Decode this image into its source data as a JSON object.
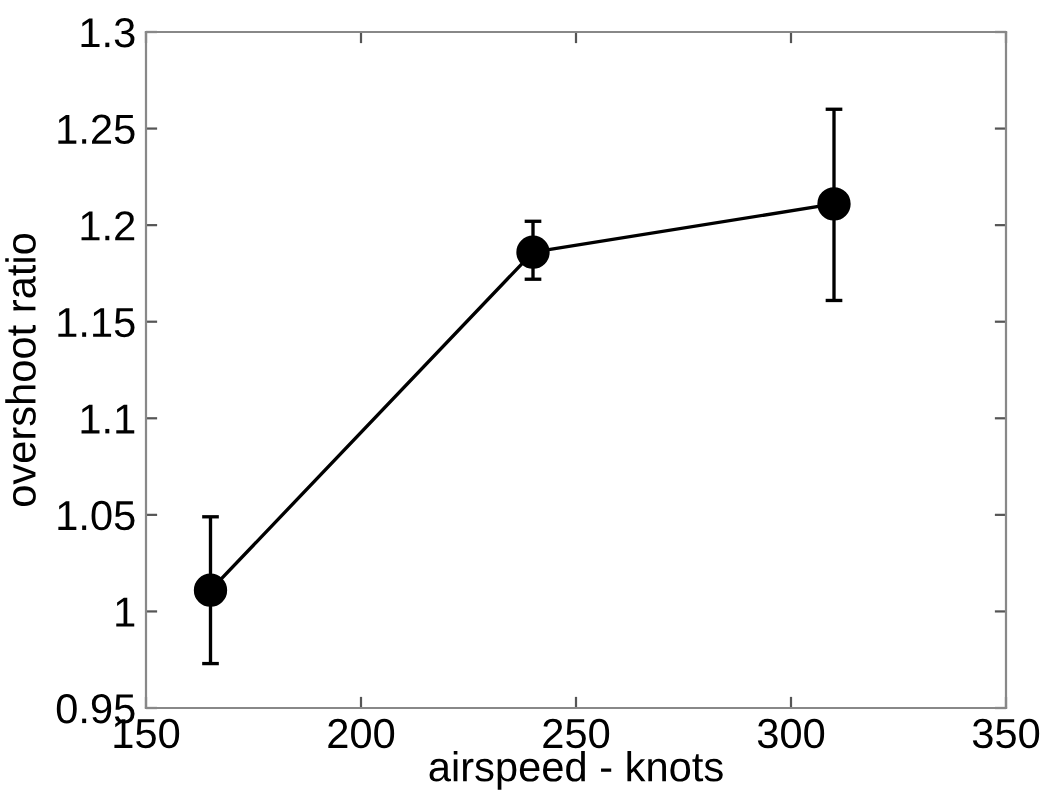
{
  "chart_data": {
    "type": "line",
    "xlabel": "airspeed - knots",
    "ylabel": "overshoot ratio",
    "x": [
      165,
      240,
      310
    ],
    "series": [
      {
        "color": "#000000",
        "values": [
          1.011,
          1.186,
          1.211
        ],
        "errors": [
          [
            0.973,
            1.049
          ],
          [
            1.172,
            1.202
          ],
          [
            1.161,
            1.26
          ]
        ]
      }
    ],
    "marker": "circle",
    "line_style": "solid",
    "xlim": [
      150,
      350
    ],
    "xticks": [
      150,
      200,
      250,
      300,
      350
    ],
    "ylim": [
      0.95,
      1.3
    ],
    "yticks": [
      0.95,
      1,
      1.05,
      1.1,
      1.15,
      1.2,
      1.25,
      1.3
    ],
    "grid": false,
    "legend": false
  }
}
